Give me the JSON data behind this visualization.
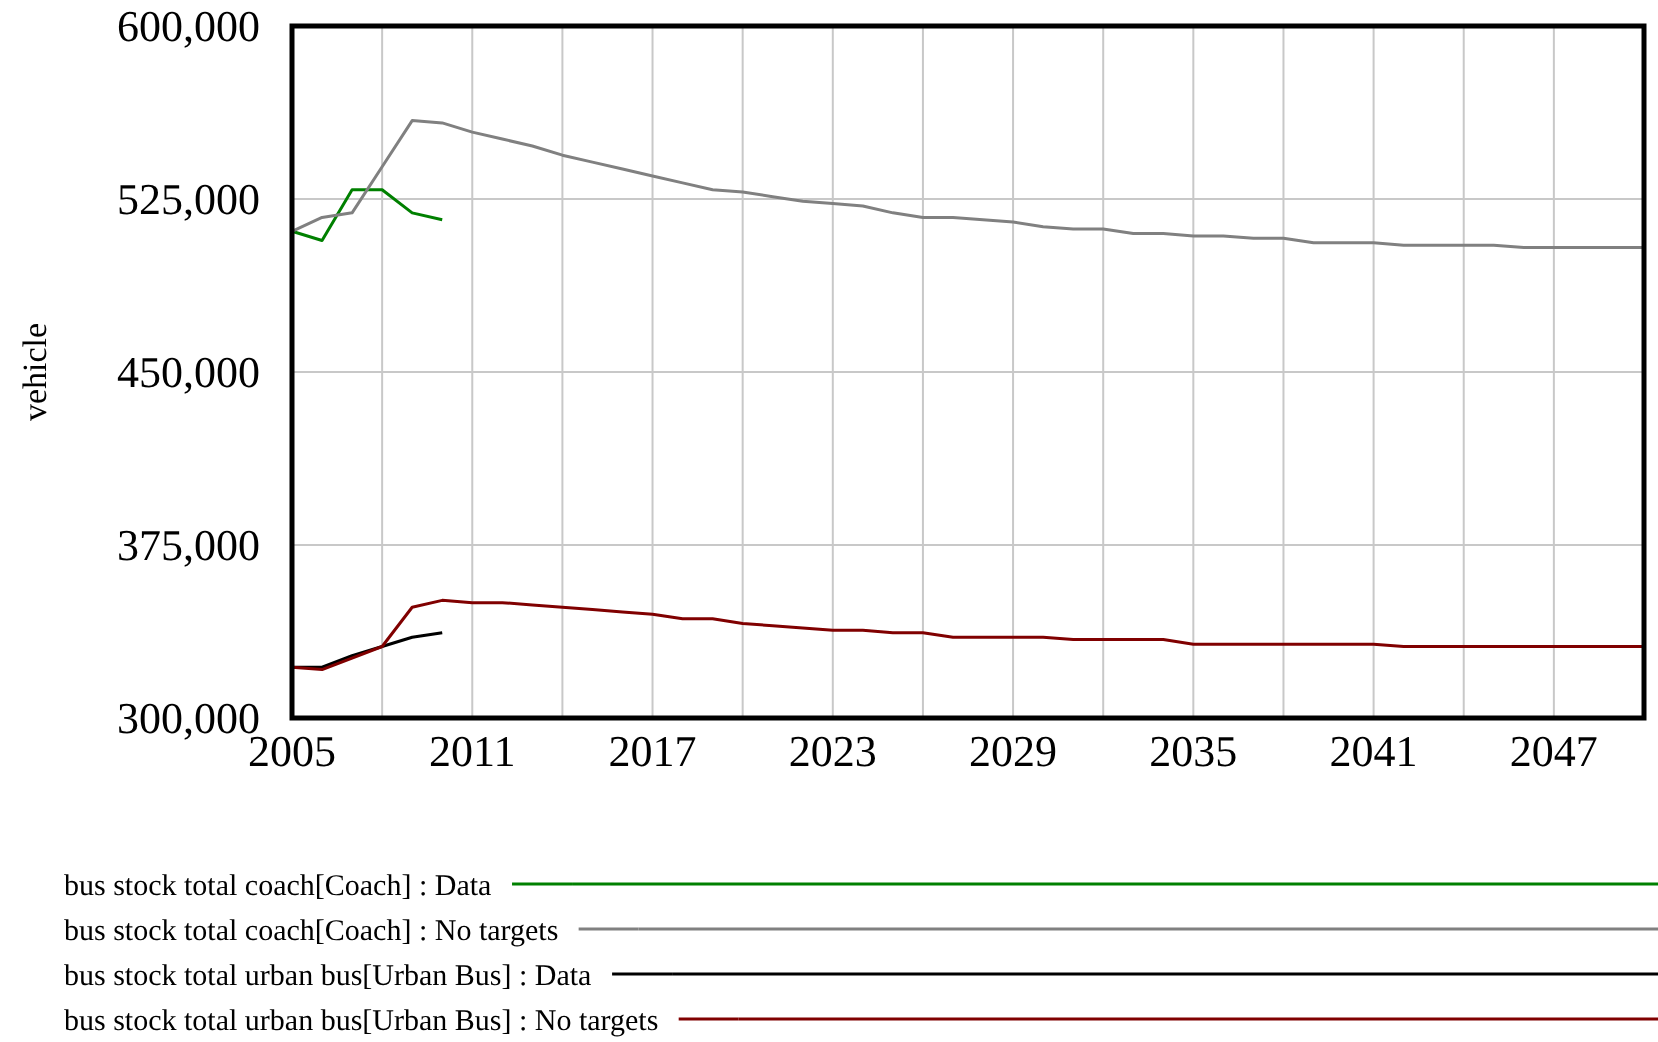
{
  "chart_data": {
    "type": "line",
    "ylabel": "vehicle",
    "x": [
      2005,
      2006,
      2007,
      2008,
      2009,
      2010,
      2011,
      2012,
      2013,
      2014,
      2015,
      2016,
      2017,
      2018,
      2019,
      2020,
      2021,
      2022,
      2023,
      2024,
      2025,
      2026,
      2027,
      2028,
      2029,
      2030,
      2031,
      2032,
      2033,
      2034,
      2035,
      2036,
      2037,
      2038,
      2039,
      2040,
      2041,
      2042,
      2043,
      2044,
      2045,
      2046,
      2047,
      2048,
      2049,
      2050
    ],
    "series": [
      {
        "name": "bus stock total coach[Coach] : Data",
        "color": "#008000",
        "x": [
          2005,
          2006,
          2007,
          2008,
          2009,
          2010
        ],
        "values": [
          511000,
          507000,
          529000,
          529000,
          519000,
          516000
        ]
      },
      {
        "name": "bus stock total coach[Coach] : No targets",
        "color": "#808080",
        "values": [
          511000,
          517000,
          519000,
          539000,
          559000,
          558000,
          554000,
          551000,
          548000,
          544000,
          541000,
          538000,
          535000,
          532000,
          529000,
          528000,
          526000,
          524000,
          523000,
          522000,
          519000,
          517000,
          517000,
          516000,
          515000,
          513000,
          512000,
          512000,
          510000,
          510000,
          509000,
          509000,
          508000,
          508000,
          506000,
          506000,
          506000,
          505000,
          505000,
          505000,
          505000,
          504000,
          504000,
          504000,
          504000,
          504000
        ]
      },
      {
        "name": "bus stock total urban bus[Urban Bus] : Data",
        "color": "#000000",
        "x": [
          2005,
          2006,
          2007,
          2008,
          2009,
          2010
        ],
        "values": [
          322000,
          322000,
          327000,
          331000,
          335000,
          337000
        ]
      },
      {
        "name": "bus stock total urban bus[Urban Bus] : No targets",
        "color": "#800000",
        "values": [
          322000,
          321000,
          326000,
          331000,
          348000,
          351000,
          350000,
          350000,
          349000,
          348000,
          347000,
          346000,
          345000,
          343000,
          343000,
          341000,
          340000,
          339000,
          338000,
          338000,
          337000,
          337000,
          335000,
          335000,
          335000,
          335000,
          334000,
          334000,
          334000,
          334000,
          332000,
          332000,
          332000,
          332000,
          332000,
          332000,
          332000,
          331000,
          331000,
          331000,
          331000,
          331000,
          331000,
          331000,
          331000,
          331000
        ]
      }
    ],
    "xlim": [
      2005,
      2050
    ],
    "xticks": [
      2005,
      {
        "value": 2008,
        "label": null
      },
      2011,
      {
        "value": 2014,
        "label": null
      },
      2017,
      {
        "value": 2020,
        "label": null
      },
      2023,
      {
        "value": 2026,
        "label": null
      },
      2029,
      {
        "value": 2032,
        "label": null
      },
      2035,
      {
        "value": 2038,
        "label": null
      },
      2041,
      {
        "value": 2044,
        "label": null
      },
      2047
    ],
    "ylim": [
      300000,
      600000
    ],
    "yticks": [
      {
        "value": 300000,
        "label": "300,000"
      },
      {
        "value": 375000,
        "label": "375,000"
      },
      {
        "value": 450000,
        "label": "450,000"
      },
      {
        "value": 525000,
        "label": "525,000"
      },
      {
        "value": 600000,
        "label": "600,000"
      }
    ],
    "grid": true,
    "legend": "bottom",
    "marker": "none",
    "line_style": "solid"
  }
}
